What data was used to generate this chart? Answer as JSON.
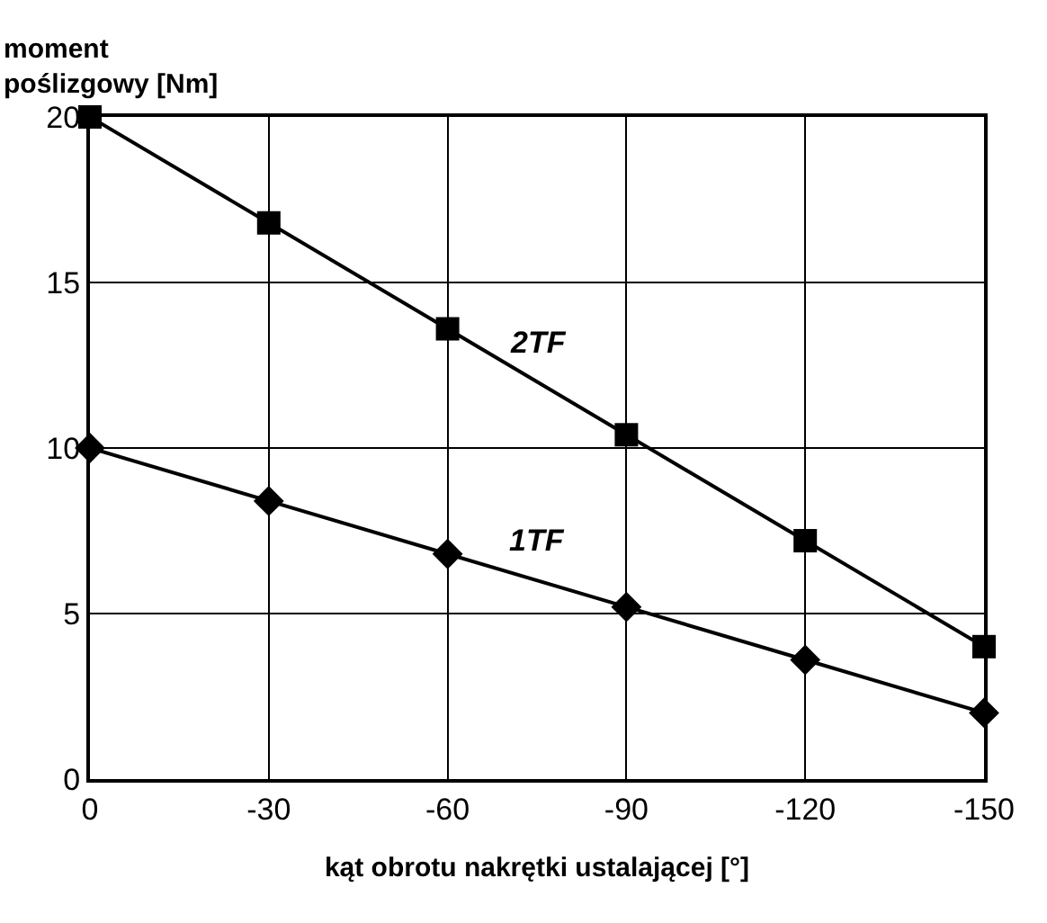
{
  "chart_data": {
    "type": "line",
    "xlabel": "kąt obrotu nakrętki ustalającej [°]",
    "ylabel": "moment\npoślizgowy [Nm]",
    "x": [
      0,
      -30,
      -60,
      -90,
      -120,
      -150
    ],
    "series": [
      {
        "name": "2TF",
        "color": "#000000",
        "marker": "square",
        "values": [
          20,
          16.8,
          13.6,
          10.4,
          7.2,
          4
        ]
      },
      {
        "name": "1TF",
        "color": "#000000",
        "marker": "diamond",
        "values": [
          10,
          8.4,
          6.8,
          5.2,
          3.6,
          2
        ]
      }
    ],
    "xlim": [
      0,
      -150
    ],
    "xticks": [
      0,
      -30,
      -60,
      -90,
      -120,
      -150
    ],
    "ylim": [
      0,
      20
    ],
    "yticks": [
      0,
      5,
      10,
      15,
      20
    ],
    "grid": true,
    "legend": false,
    "line_style": "solid"
  }
}
